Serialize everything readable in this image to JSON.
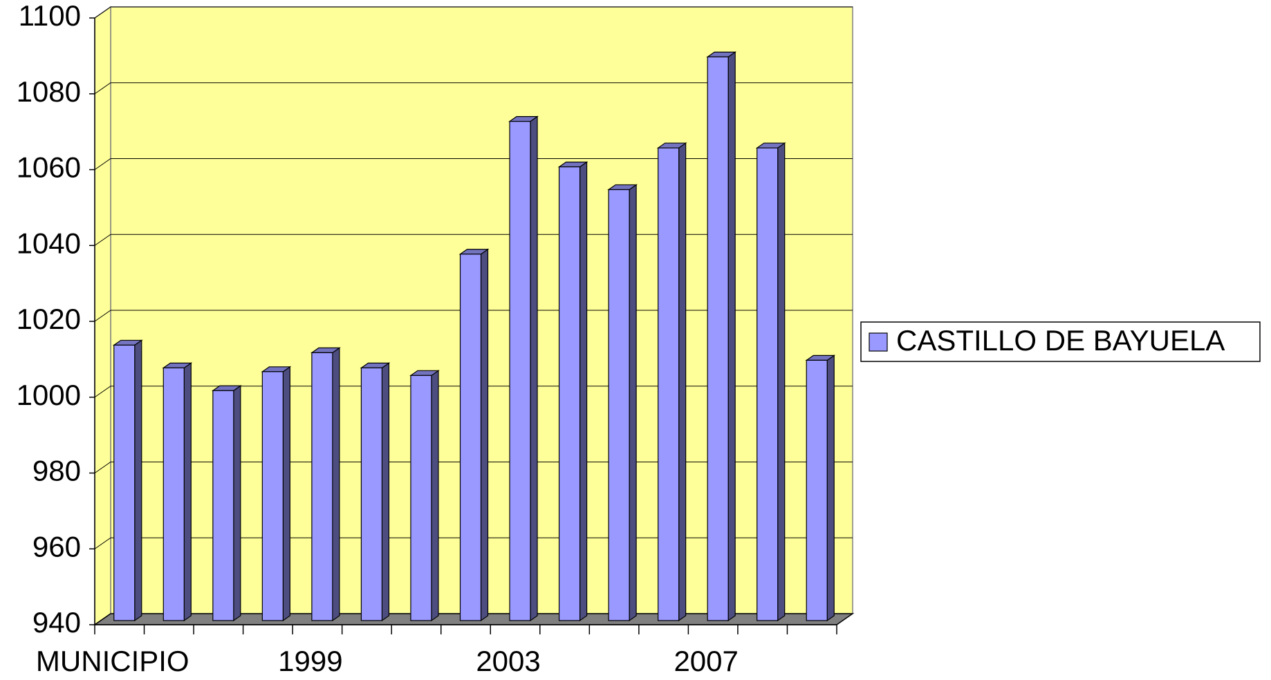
{
  "chart_data": {
    "type": "bar3d",
    "categories": [
      "MUNICIPIO",
      null,
      null,
      null,
      "1999",
      null,
      null,
      null,
      "2003",
      null,
      null,
      null,
      "2007",
      null,
      null
    ],
    "series": [
      {
        "name": "CASTILLO DE BAYUELA",
        "color": "#9999ff",
        "values": [
          1013,
          1007,
          1001,
          1006,
          1011,
          1007,
          1005,
          1037,
          1072,
          1060,
          1054,
          1065,
          1089,
          1065,
          1009
        ]
      }
    ],
    "ylim": [
      940,
      1100
    ],
    "yticks": [
      940,
      960,
      980,
      1000,
      1020,
      1040,
      1060,
      1080,
      1100
    ],
    "grid": true,
    "wall_color": "#ffff99",
    "floor_color": "#808080",
    "legend": "right"
  }
}
